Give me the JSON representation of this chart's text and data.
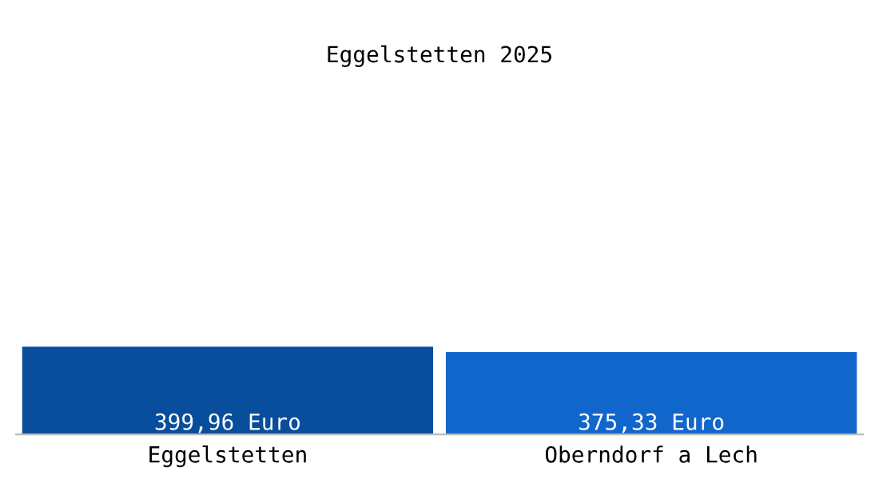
{
  "chart_data": {
    "type": "bar",
    "title": "Eggelstetten 2025",
    "categories": [
      "Eggelstetten",
      "Oberndorf a Lech"
    ],
    "values": [
      399.96,
      375.33
    ],
    "colors": [
      "#084e9c",
      "#1166cc"
    ],
    "value_labels": [
      "399,96 Euro",
      "375,33 Euro"
    ],
    "grid": false,
    "legend": false
  }
}
